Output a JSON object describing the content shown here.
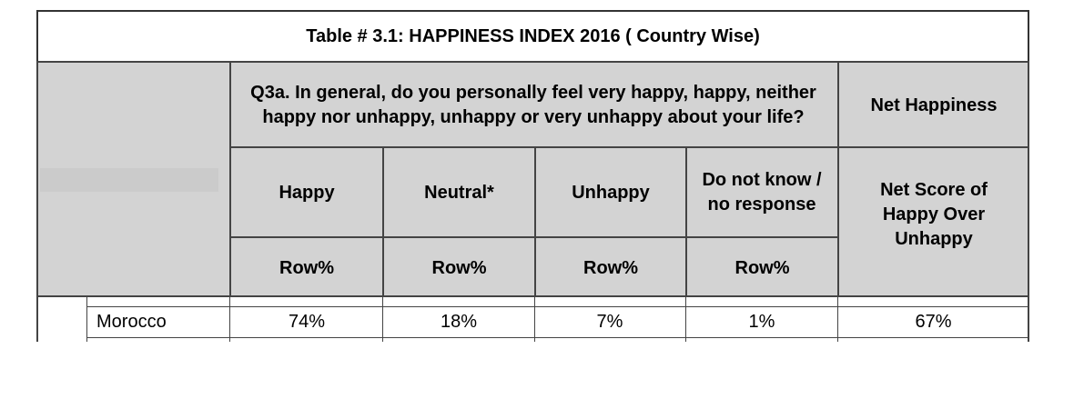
{
  "table": {
    "title": "Table # 3.1: HAPPINESS INDEX 2016 ( Country Wise)",
    "question": "Q3a. In general, do you personally feel very happy, happy, neither happy nor unhappy, unhappy or very unhappy about your life?",
    "net_happiness_header": "Net Happiness",
    "columns": [
      "Happy",
      "Neutral*",
      "Unhappy",
      "Do not know / no response"
    ],
    "net_score_header": "Net Score of Happy Over Unhappy",
    "row_pct_label": "Row%",
    "rows": [
      {
        "country": "Morocco",
        "happy": "74%",
        "neutral": "18%",
        "unhappy": "7%",
        "dk": "1%",
        "net": "67%"
      }
    ]
  }
}
